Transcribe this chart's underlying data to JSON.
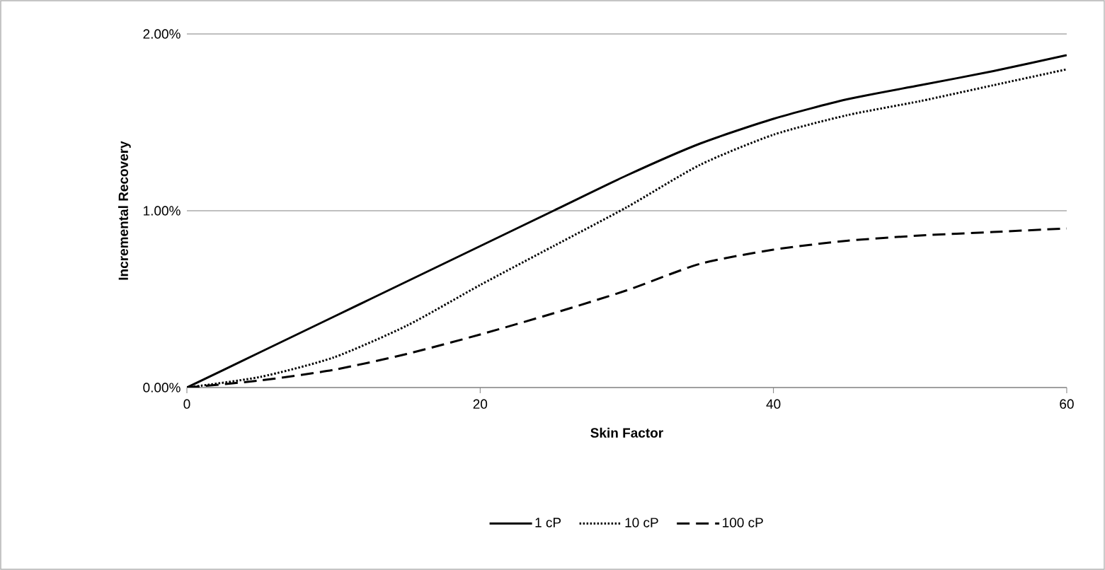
{
  "chart_data": {
    "type": "line",
    "xlabel": "Skin Factor",
    "ylabel": "Incremental Recovery",
    "x": [
      0,
      5,
      10,
      15,
      20,
      25,
      30,
      35,
      40,
      45,
      50,
      55,
      60
    ],
    "series": [
      {
        "name": "1 cP",
        "color": "#000000",
        "line_style": "solid",
        "values": [
          0,
          0.2,
          0.4,
          0.6,
          0.8,
          1.0,
          1.2,
          1.38,
          1.52,
          1.63,
          1.71,
          1.79,
          1.88
        ]
      },
      {
        "name": "10 cP",
        "color": "#000000",
        "line_style": "dotted",
        "values": [
          0,
          0.06,
          0.17,
          0.35,
          0.58,
          0.8,
          1.02,
          1.26,
          1.43,
          1.54,
          1.62,
          1.71,
          1.8
        ]
      },
      {
        "name": "100 cP",
        "color": "#000000",
        "line_style": "dashed",
        "values": [
          0,
          0.04,
          0.1,
          0.19,
          0.3,
          0.42,
          0.55,
          0.7,
          0.78,
          0.83,
          0.86,
          0.88,
          0.9
        ]
      }
    ],
    "xlim": [
      0,
      60
    ],
    "xticks": [
      0,
      20,
      40,
      60
    ],
    "ylim": [
      0,
      2
    ],
    "yticks": [
      {
        "value": 0,
        "label": "0.00%"
      },
      {
        "value": 1,
        "label": "1.00%"
      },
      {
        "value": 2,
        "label": "2.00%"
      }
    ],
    "grid": "y",
    "legend": "bottom",
    "marker": "none"
  }
}
